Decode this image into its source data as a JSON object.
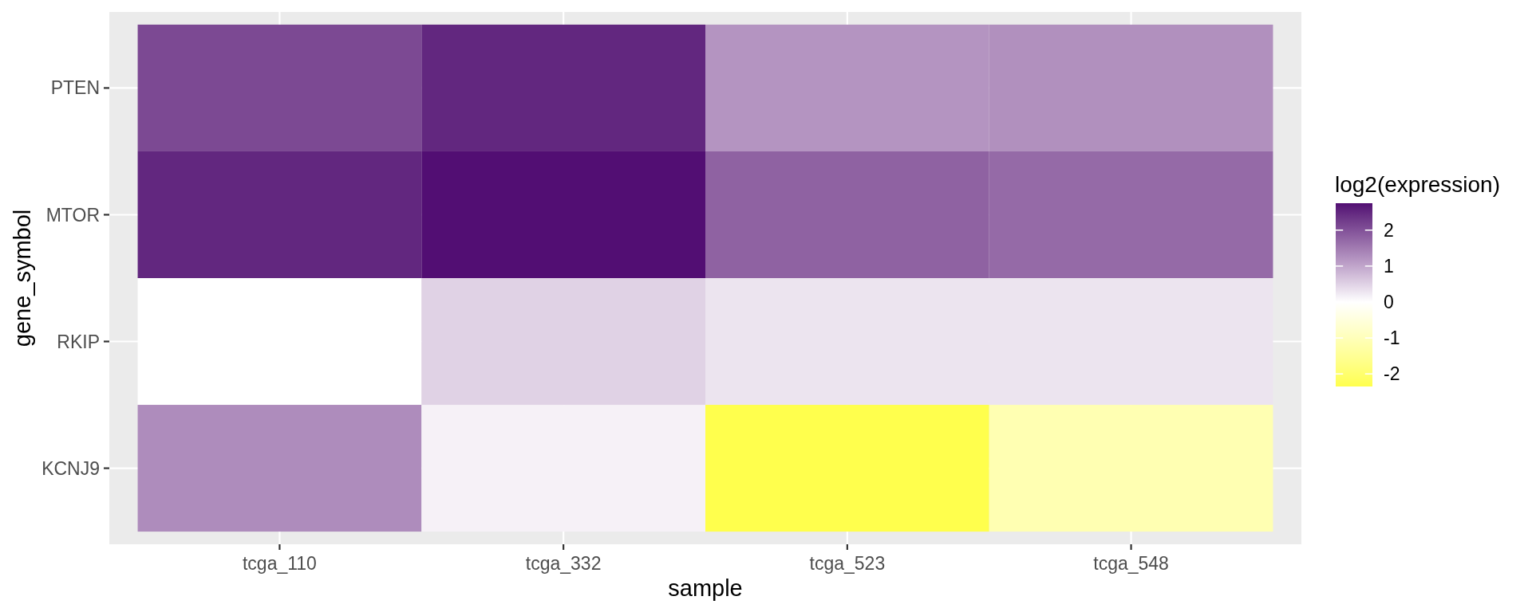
{
  "chart_data": {
    "type": "heatmap",
    "xlabel": "sample",
    "ylabel": "gene_symbol",
    "legend_title": "log2(expression)",
    "grid": true,
    "categories": [
      "tcga_110",
      "tcga_332",
      "tcga_523",
      "tcga_548"
    ],
    "y_categories": [
      "PTEN",
      "MTOR",
      "RKIP",
      "KCNJ9"
    ],
    "cells": [
      [
        2.1,
        2.5,
        1.2,
        1.25
      ],
      [
        2.5,
        2.75,
        1.8,
        1.7
      ],
      [
        0,
        0.5,
        0.3,
        0.3
      ],
      [
        1.3,
        0.15,
        -2.35,
        -1.1
      ]
    ],
    "clim": [
      -2.35,
      2.75
    ],
    "cticks": [
      -2,
      -1,
      0,
      1,
      2
    ]
  }
}
